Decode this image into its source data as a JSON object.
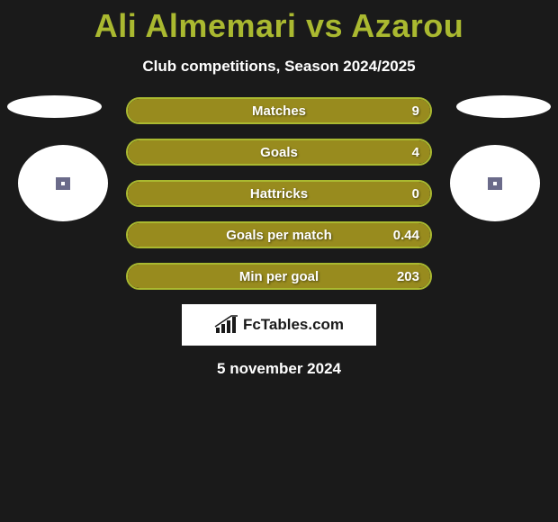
{
  "title": "Ali Almemari vs Azarou",
  "title_color": "#aab930",
  "subtitle": "Club competitions, Season 2024/2025",
  "subtitle_color": "#ffffff",
  "background_color": "#1a1a1a",
  "date": "5 november 2024",
  "logo_text": "FcTables.com",
  "bars": {
    "type": "horizontal-bar",
    "border_color": "#aab930",
    "fill_color": "#988b1e",
    "text_color": "#ffffff",
    "height": 30,
    "border_radius": 16,
    "gap": 16,
    "rows": [
      {
        "label": "Matches",
        "value": "9",
        "fill_pct": 100
      },
      {
        "label": "Goals",
        "value": "4",
        "fill_pct": 100
      },
      {
        "label": "Hattricks",
        "value": "0",
        "fill_pct": 100
      },
      {
        "label": "Goals per match",
        "value": "0.44",
        "fill_pct": 100
      },
      {
        "label": "Min per goal",
        "value": "203",
        "fill_pct": 100
      }
    ]
  },
  "ellipses": {
    "color": "#ffffff",
    "top_w": 105,
    "top_h": 25,
    "circle_w": 100,
    "circle_h": 85,
    "inner_color": "#6b6b8a"
  }
}
